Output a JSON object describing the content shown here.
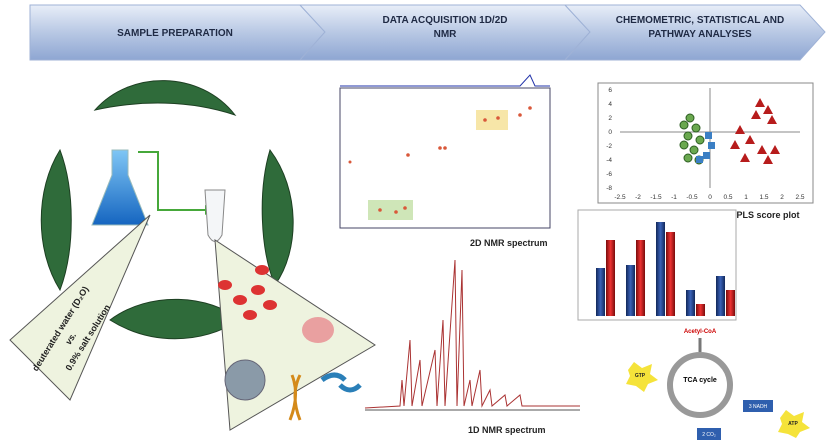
{
  "steps": [
    "SAMPLE PREPARATION",
    "DATA ACQUISITION 1D/2D NMR",
    "CHEMOMETRIC, STATISTICAL AND PATHWAY ANALYSES"
  ],
  "sample": {
    "solvent_a": "deuterated water (D₂O)",
    "versus": "vs.",
    "solvent_b": "0.9% salt solution"
  },
  "spectra": {
    "nmr_2d": "2D NMR spectrum",
    "nmr_1d": "1D NMR spectrum"
  },
  "pca": {
    "label": "PCA/OPLS score plot",
    "xticks": [
      -2.5,
      -2,
      -1.5,
      -1,
      -0.5,
      0,
      0.5,
      1,
      1.5,
      2,
      2.5
    ],
    "yticks": [
      6,
      4,
      2,
      0,
      -2,
      -4,
      -6,
      -8
    ]
  },
  "pathway": {
    "input": "Acetyl-CoA",
    "cycle": "TCA cycle",
    "gtp": "GTP",
    "nadh": "3 NADH",
    "atp": "ATP",
    "co2": "2 CO₂"
  }
}
